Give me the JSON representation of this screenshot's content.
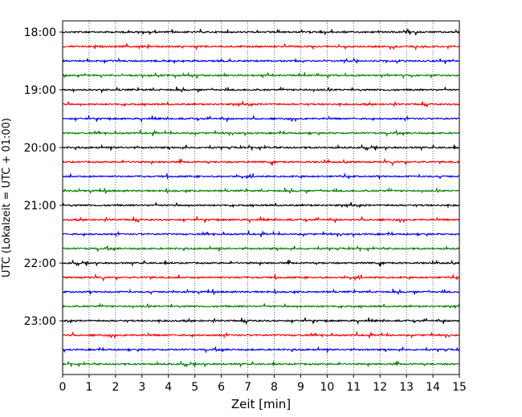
{
  "chart_data": {
    "type": "line",
    "title": "",
    "xlabel": "Zeit  [min]",
    "ylabel": "UTC (Lokalzeit = UTC + 01:00)",
    "xlim": [
      0,
      15
    ],
    "x_ticks": [
      "0",
      "1",
      "2",
      "3",
      "4",
      "5",
      "6",
      "7",
      "8",
      "9",
      "10",
      "11",
      "12",
      "13",
      "14",
      "15"
    ],
    "y_tick_labels": [
      "18:00",
      "19:00",
      "20:00",
      "21:00",
      "22:00",
      "23:00"
    ],
    "grid": "vertical dotted lines at each minute",
    "trace_interval_minutes": 15,
    "traces_per_hour": 4,
    "traces": [
      {
        "start": "18:00",
        "color": "#000000"
      },
      {
        "start": "18:15",
        "color": "#ff0000"
      },
      {
        "start": "18:30",
        "color": "#0000ff"
      },
      {
        "start": "18:45",
        "color": "#008000"
      },
      {
        "start": "19:00",
        "color": "#000000"
      },
      {
        "start": "19:15",
        "color": "#ff0000"
      },
      {
        "start": "19:30",
        "color": "#0000ff"
      },
      {
        "start": "19:45",
        "color": "#008000"
      },
      {
        "start": "20:00",
        "color": "#000000"
      },
      {
        "start": "20:15",
        "color": "#ff0000"
      },
      {
        "start": "20:30",
        "color": "#0000ff"
      },
      {
        "start": "20:45",
        "color": "#008000"
      },
      {
        "start": "21:00",
        "color": "#000000"
      },
      {
        "start": "21:15",
        "color": "#ff0000"
      },
      {
        "start": "21:30",
        "color": "#0000ff"
      },
      {
        "start": "21:45",
        "color": "#008000"
      },
      {
        "start": "22:00",
        "color": "#000000"
      },
      {
        "start": "22:15",
        "color": "#ff0000"
      },
      {
        "start": "22:30",
        "color": "#0000ff"
      },
      {
        "start": "22:45",
        "color": "#008000"
      },
      {
        "start": "23:00",
        "color": "#000000"
      },
      {
        "start": "23:15",
        "color": "#ff0000"
      },
      {
        "start": "23:30",
        "color": "#0000ff"
      },
      {
        "start": "23:45",
        "color": "#008000"
      }
    ]
  }
}
